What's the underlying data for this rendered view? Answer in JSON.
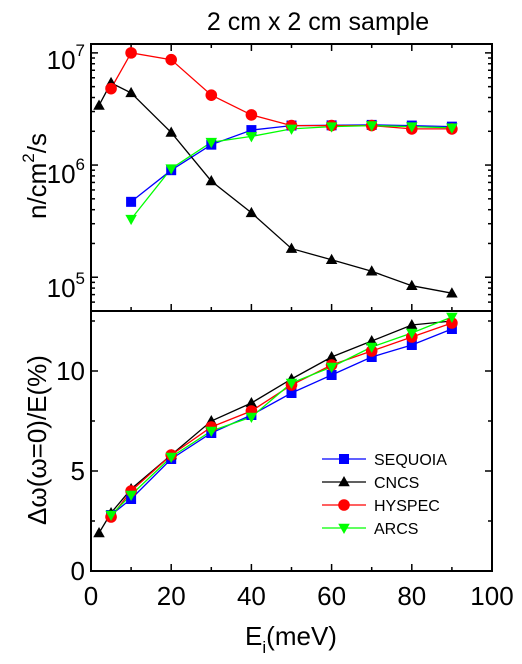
{
  "chart_data": [
    {
      "type": "line",
      "title": "2 cm x 2 cm sample",
      "ylabel": "n/cm²/s",
      "ylabel_base": "n/cm",
      "ylabel_sup": "2",
      "ylabel_tail": "/s",
      "yscale": "log",
      "ylim": [
        50000,
        12000000
      ],
      "xlim": [
        0,
        100
      ],
      "ytick_labels": [
        {
          "base": "10",
          "exp": "5",
          "value": 100000
        },
        {
          "base": "10",
          "exp": "6",
          "value": 1000000
        },
        {
          "base": "10",
          "exp": "7",
          "value": 10000000
        }
      ],
      "series": [
        {
          "name": "SEQUOIA",
          "color": "#0000ff",
          "marker": "square",
          "x": [
            10,
            20,
            30,
            40,
            50,
            60,
            70,
            80,
            90
          ],
          "y": [
            470000,
            900000,
            1520000,
            2050000,
            2250000,
            2260000,
            2280000,
            2250000,
            2200000
          ]
        },
        {
          "name": "CNCS",
          "color": "#000000",
          "marker": "triangle-up",
          "x": [
            2,
            5,
            10,
            20,
            30,
            40,
            50,
            60,
            70,
            80,
            90
          ],
          "y": [
            3400000,
            5400000,
            4400000,
            1950000,
            720000,
            375000,
            180000,
            143000,
            113000,
            84000,
            72000
          ]
        },
        {
          "name": "HYSPEC",
          "color": "#ff0000",
          "marker": "circle",
          "x": [
            5,
            10,
            20,
            30,
            40,
            50,
            60,
            70,
            80,
            90
          ],
          "y": [
            4800000,
            10000000,
            8700000,
            4200000,
            2800000,
            2250000,
            2250000,
            2250000,
            2100000,
            2100000
          ]
        },
        {
          "name": "ARCS",
          "color": "#00ff00",
          "marker": "triangle-down",
          "x": [
            10,
            20,
            30,
            40,
            50,
            60,
            70,
            80,
            90
          ],
          "y": [
            330000,
            930000,
            1600000,
            1800000,
            2100000,
            2200000,
            2250000,
            2200000,
            2150000
          ]
        }
      ]
    },
    {
      "type": "line",
      "xlabel": "Eᵢ(meV)",
      "xlabel_base": "E",
      "xlabel_sub": "i",
      "xlabel_tail": "(meV)",
      "ylabel": "Δω(ω=0)/E(%)",
      "xlim": [
        0,
        100
      ],
      "ylim": [
        0,
        13
      ],
      "xticks": [
        0,
        20,
        40,
        60,
        80,
        100
      ],
      "yticks": [
        0,
        5,
        10
      ],
      "legend_position": "lower-right",
      "series": [
        {
          "name": "SEQUOIA",
          "color": "#0000ff",
          "marker": "square",
          "x": [
            5,
            10,
            20,
            30,
            40,
            50,
            60,
            70,
            80,
            90
          ],
          "y": [
            2.8,
            3.6,
            5.6,
            6.9,
            7.8,
            8.9,
            9.8,
            10.7,
            11.3,
            12.1
          ]
        },
        {
          "name": "CNCS",
          "color": "#000000",
          "marker": "triangle-up",
          "x": [
            2,
            5,
            10,
            20,
            30,
            40,
            50,
            60,
            70,
            80,
            90
          ],
          "y": [
            1.9,
            2.9,
            4.1,
            5.8,
            7.5,
            8.4,
            9.6,
            10.7,
            11.5,
            12.3,
            12.5
          ]
        },
        {
          "name": "HYSPEC",
          "color": "#ff0000",
          "marker": "circle",
          "x": [
            5,
            10,
            20,
            30,
            40,
            50,
            60,
            70,
            80,
            90
          ],
          "y": [
            2.7,
            4.0,
            5.8,
            7.2,
            8.0,
            9.3,
            10.3,
            11.0,
            11.7,
            12.4
          ]
        },
        {
          "name": "ARCS",
          "color": "#00ff00",
          "marker": "triangle-down",
          "x": [
            5,
            10,
            20,
            30,
            40,
            50,
            60,
            70,
            80,
            90
          ],
          "y": [
            2.8,
            3.8,
            5.7,
            7.0,
            7.7,
            9.4,
            10.2,
            11.2,
            11.9,
            12.7
          ]
        }
      ]
    }
  ]
}
